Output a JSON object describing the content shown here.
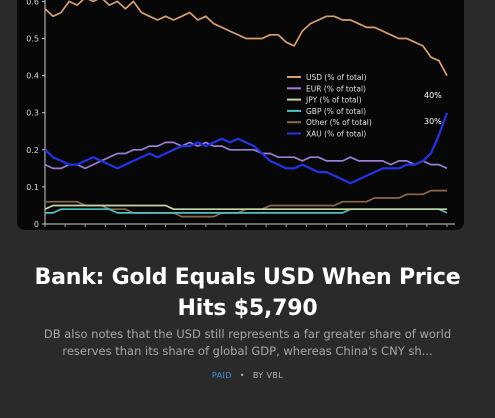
{
  "article": {
    "title_line1": "Bank: Gold Equals USD When Price",
    "title_line2": "Hits $5,790",
    "excerpt_line1": "DB also notes that the USD still represents a far greater share of world",
    "excerpt_line2": "reserves than its share of global GDP, whereas China's CNY sh...",
    "tag": "PAID",
    "separator": "•",
    "byline": "BY VBL"
  },
  "chart_data": {
    "type": "line",
    "title": "",
    "xlabel": "",
    "ylabel": "",
    "ylim": [
      0,
      0.62
    ],
    "yticks": [
      "0",
      "0.1",
      "0.2",
      "0.3",
      "0.4",
      "0.5",
      "0.6"
    ],
    "grid": false,
    "legend_position": "right",
    "x": [
      0,
      2,
      4,
      6,
      8,
      10,
      12,
      14,
      16,
      18,
      20,
      22,
      24,
      26,
      28,
      30,
      32,
      34,
      36,
      38,
      40,
      42,
      44,
      46,
      48,
      50,
      52,
      54,
      56,
      58,
      60,
      62,
      64,
      66,
      68,
      70,
      72,
      74,
      76,
      78,
      80,
      82,
      84,
      86,
      88,
      90,
      92,
      94,
      96,
      98,
      100
    ],
    "annotations": [
      {
        "text": "40%",
        "series": "USD (% of total)"
      },
      {
        "text": "30%",
        "series": "XAU (% of total)"
      }
    ],
    "series": [
      {
        "name": "USD (% of total)",
        "color": "#d8a070",
        "values": [
          0.58,
          0.56,
          0.57,
          0.6,
          0.59,
          0.61,
          0.6,
          0.61,
          0.59,
          0.6,
          0.58,
          0.6,
          0.57,
          0.56,
          0.55,
          0.56,
          0.55,
          0.56,
          0.57,
          0.55,
          0.56,
          0.54,
          0.53,
          0.52,
          0.51,
          0.5,
          0.5,
          0.5,
          0.51,
          0.51,
          0.49,
          0.48,
          0.52,
          0.54,
          0.55,
          0.56,
          0.56,
          0.55,
          0.55,
          0.54,
          0.53,
          0.53,
          0.52,
          0.51,
          0.5,
          0.5,
          0.49,
          0.48,
          0.45,
          0.44,
          0.4
        ]
      },
      {
        "name": "EUR (% of total)",
        "color": "#9a7fd6",
        "values": [
          0.16,
          0.15,
          0.15,
          0.16,
          0.16,
          0.15,
          0.16,
          0.17,
          0.18,
          0.19,
          0.19,
          0.2,
          0.2,
          0.21,
          0.21,
          0.22,
          0.22,
          0.21,
          0.22,
          0.21,
          0.22,
          0.21,
          0.21,
          0.2,
          0.2,
          0.2,
          0.2,
          0.19,
          0.19,
          0.18,
          0.18,
          0.18,
          0.17,
          0.18,
          0.18,
          0.17,
          0.17,
          0.17,
          0.18,
          0.17,
          0.17,
          0.17,
          0.17,
          0.16,
          0.17,
          0.17,
          0.16,
          0.17,
          0.16,
          0.16,
          0.15
        ]
      },
      {
        "name": "JPY (% of total)",
        "color": "#c4d6a0",
        "values": [
          0.04,
          0.05,
          0.05,
          0.05,
          0.05,
          0.05,
          0.05,
          0.05,
          0.05,
          0.05,
          0.05,
          0.05,
          0.05,
          0.05,
          0.05,
          0.05,
          0.04,
          0.04,
          0.04,
          0.04,
          0.04,
          0.04,
          0.04,
          0.04,
          0.04,
          0.04,
          0.04,
          0.04,
          0.04,
          0.04,
          0.04,
          0.04,
          0.04,
          0.04,
          0.04,
          0.04,
          0.04,
          0.04,
          0.04,
          0.04,
          0.04,
          0.04,
          0.04,
          0.04,
          0.04,
          0.04,
          0.04,
          0.04,
          0.04,
          0.04,
          0.04
        ]
      },
      {
        "name": "GBP (% of total)",
        "color": "#4fc2c6",
        "values": [
          0.03,
          0.03,
          0.04,
          0.04,
          0.04,
          0.04,
          0.04,
          0.04,
          0.04,
          0.03,
          0.03,
          0.03,
          0.03,
          0.03,
          0.03,
          0.03,
          0.03,
          0.03,
          0.03,
          0.03,
          0.03,
          0.03,
          0.03,
          0.03,
          0.03,
          0.03,
          0.03,
          0.03,
          0.03,
          0.03,
          0.03,
          0.03,
          0.03,
          0.03,
          0.03,
          0.03,
          0.03,
          0.03,
          0.04,
          0.04,
          0.04,
          0.04,
          0.04,
          0.04,
          0.04,
          0.04,
          0.04,
          0.04,
          0.04,
          0.04,
          0.03
        ]
      },
      {
        "name": "Other (% of total)",
        "color": "#8a6a4a",
        "values": [
          0.06,
          0.06,
          0.06,
          0.06,
          0.06,
          0.05,
          0.05,
          0.05,
          0.04,
          0.04,
          0.04,
          0.03,
          0.03,
          0.03,
          0.03,
          0.03,
          0.03,
          0.02,
          0.02,
          0.02,
          0.02,
          0.02,
          0.03,
          0.03,
          0.03,
          0.04,
          0.04,
          0.04,
          0.05,
          0.05,
          0.05,
          0.05,
          0.05,
          0.05,
          0.05,
          0.05,
          0.05,
          0.06,
          0.06,
          0.06,
          0.06,
          0.07,
          0.07,
          0.07,
          0.07,
          0.08,
          0.08,
          0.08,
          0.09,
          0.09,
          0.09
        ]
      },
      {
        "name": "XAU (% of total)",
        "color": "#2233e6",
        "values": [
          0.2,
          0.18,
          0.17,
          0.16,
          0.16,
          0.17,
          0.18,
          0.17,
          0.16,
          0.15,
          0.16,
          0.17,
          0.18,
          0.19,
          0.18,
          0.19,
          0.2,
          0.21,
          0.21,
          0.22,
          0.21,
          0.22,
          0.23,
          0.22,
          0.23,
          0.22,
          0.21,
          0.19,
          0.17,
          0.16,
          0.15,
          0.15,
          0.16,
          0.15,
          0.14,
          0.14,
          0.13,
          0.12,
          0.11,
          0.12,
          0.13,
          0.14,
          0.15,
          0.15,
          0.15,
          0.16,
          0.16,
          0.17,
          0.19,
          0.24,
          0.3
        ]
      }
    ]
  }
}
